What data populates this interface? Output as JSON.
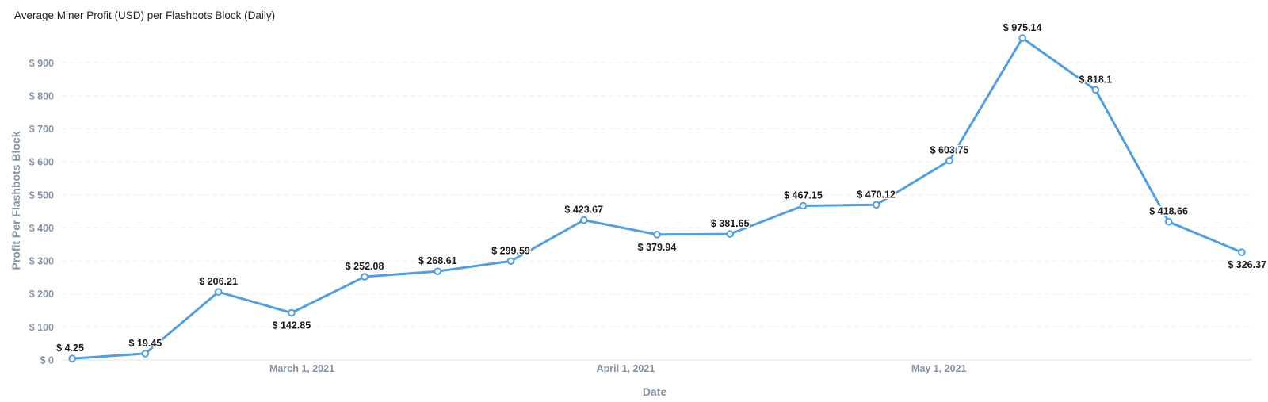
{
  "chart_data": {
    "type": "line",
    "title": "Average Miner Profit (USD) per Flashbots Block (Daily)",
    "xlabel": "Date",
    "ylabel": "Profit Per Flashbots Block",
    "ylim": [
      0,
      975.14
    ],
    "y_ticks": [
      "$ 0",
      "$ 100",
      "$ 200",
      "$ 300",
      "$ 400",
      "$ 500",
      "$ 600",
      "$ 700",
      "$ 800",
      "$ 900"
    ],
    "y_tick_values": [
      0,
      100,
      200,
      300,
      400,
      500,
      600,
      700,
      800,
      900
    ],
    "x_ticks": [
      "March 1, 2021",
      "April 1, 2021",
      "May 1, 2021"
    ],
    "x_tick_dates": [
      "2021-03-01",
      "2021-04-01",
      "2021-05-01"
    ],
    "xlim": [
      "2021-02-06",
      "2021-05-31"
    ],
    "grid": true,
    "line_color": "#509ee3",
    "x": [
      "2021-02-07",
      "2021-02-14",
      "2021-02-21",
      "2021-02-28",
      "2021-03-07",
      "2021-03-14",
      "2021-03-21",
      "2021-03-28",
      "2021-04-04",
      "2021-04-11",
      "2021-04-18",
      "2021-04-25",
      "2021-05-02",
      "2021-05-09",
      "2021-05-16",
      "2021-05-23",
      "2021-05-30"
    ],
    "values": [
      4.25,
      19.45,
      206.21,
      142.85,
      252.08,
      268.61,
      299.59,
      423.67,
      379.94,
      381.65,
      467.15,
      470.12,
      603.75,
      975.14,
      818.1,
      418.66,
      326.37
    ],
    "labels": [
      "$ 4.25",
      "$ 19.45",
      "$ 206.21",
      "$ 142.85",
      "$ 252.08",
      "$ 268.61",
      "$ 299.59",
      "$ 423.67",
      "$ 379.94",
      "$ 381.65",
      "$ 467.15",
      "$ 470.12",
      "$ 603.75",
      "$ 975.14",
      "$ 818.1",
      "$ 418.66",
      "$ 326.37"
    ]
  }
}
